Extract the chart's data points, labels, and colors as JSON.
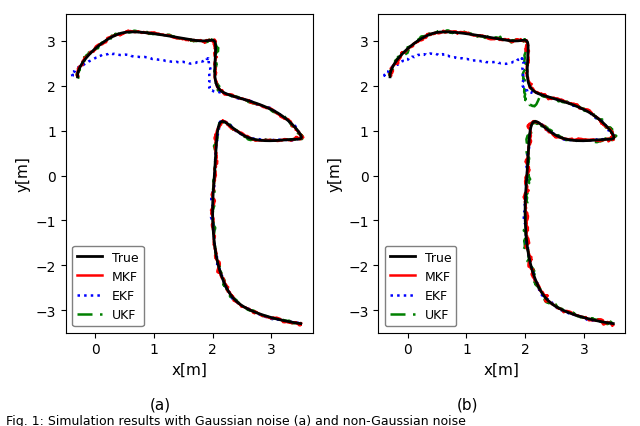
{
  "fig_width": 6.4,
  "fig_height": 4.27,
  "dpi": 100,
  "subplot_a_label": "(a)",
  "subplot_b_label": "(b)",
  "caption": "Fig. 1: Simulation results with Gaussian noise (a) and non-Gaussian noise",
  "xlabel": "x[m]",
  "ylabel": "y[m]",
  "xlim": [
    -0.5,
    3.7
  ],
  "ylim": [
    -3.5,
    3.6
  ],
  "xticks": [
    0,
    1,
    2,
    3
  ],
  "yticks": [
    -3,
    -2,
    -1,
    0,
    1,
    2,
    3
  ],
  "true_color": "#000000",
  "mkf_color": "#ff0000",
  "ekf_color": "#0000ff",
  "ukf_color": "#008000",
  "true_lw": 2.0,
  "mkf_lw": 1.8,
  "ekf_lw": 1.8,
  "ukf_lw": 1.8,
  "legend_labels": [
    "True",
    "MKF",
    "EKF",
    "UKF"
  ],
  "legend_loc": "lower left"
}
